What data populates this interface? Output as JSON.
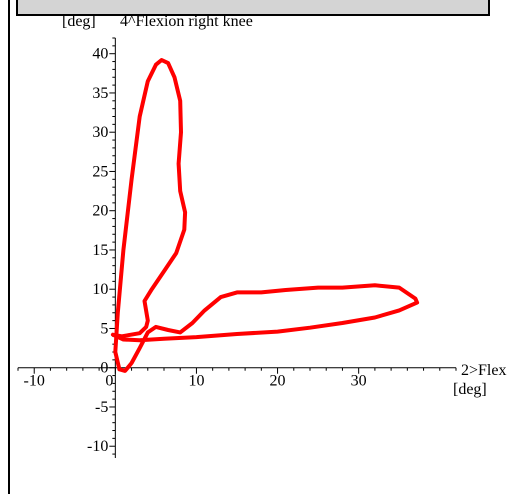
{
  "chart_data": {
    "type": "line",
    "y_axis_unit": "[deg]",
    "y_axis_label": "4^Flexion right knee",
    "x_axis_label": "2>Flex",
    "x_axis_unit": "[deg]",
    "xlim": [
      -12,
      42
    ],
    "ylim": [
      -11.5,
      42
    ],
    "x_ticks": [
      -10,
      0,
      10,
      20,
      30
    ],
    "y_ticks": [
      -10,
      -5,
      0,
      5,
      10,
      15,
      20,
      25,
      30,
      35,
      40
    ],
    "series": [
      {
        "color": "#ff0000",
        "points": [
          [
            0.5,
            -0.2
          ],
          [
            1.2,
            -0.4
          ],
          [
            2.0,
            0.6
          ],
          [
            3.0,
            2.5
          ],
          [
            4.0,
            4.5
          ],
          [
            5.0,
            5.2
          ],
          [
            6.5,
            4.8
          ],
          [
            8.0,
            4.5
          ],
          [
            9.5,
            5.7
          ],
          [
            11.0,
            7.3
          ],
          [
            13.0,
            9.0
          ],
          [
            15.0,
            9.6
          ],
          [
            18.0,
            9.6
          ],
          [
            21.0,
            9.9
          ],
          [
            25.0,
            10.2
          ],
          [
            28.0,
            10.2
          ],
          [
            32.0,
            10.5
          ],
          [
            35.0,
            10.2
          ],
          [
            37.0,
            8.8
          ],
          [
            37.2,
            8.3
          ],
          [
            35.0,
            7.3
          ],
          [
            32.0,
            6.4
          ],
          [
            28.0,
            5.7
          ],
          [
            24.0,
            5.1
          ],
          [
            20.0,
            4.6
          ],
          [
            15.0,
            4.3
          ],
          [
            10.0,
            3.9
          ],
          [
            6.0,
            3.7
          ],
          [
            3.0,
            3.5
          ],
          [
            1.0,
            3.6
          ],
          [
            -0.3,
            4.2
          ],
          [
            0.8,
            4.0
          ],
          [
            3.0,
            4.4
          ],
          [
            3.8,
            5.2
          ],
          [
            4.0,
            6.0
          ],
          [
            3.6,
            8.5
          ],
          [
            4.5,
            10.0
          ],
          [
            6.0,
            12.3
          ],
          [
            7.5,
            14.6
          ],
          [
            8.5,
            17.6
          ],
          [
            8.6,
            19.8
          ],
          [
            8.0,
            22.5
          ],
          [
            7.8,
            26.0
          ],
          [
            8.1,
            30.0
          ],
          [
            8.0,
            34.0
          ],
          [
            7.3,
            37.0
          ],
          [
            6.5,
            38.8
          ],
          [
            5.7,
            39.2
          ],
          [
            5.0,
            38.6
          ],
          [
            4.0,
            36.5
          ],
          [
            3.0,
            32.0
          ],
          [
            2.0,
            24.0
          ],
          [
            1.0,
            15.0
          ],
          [
            0.3,
            7.0
          ],
          [
            0.0,
            2.0
          ],
          [
            0.5,
            -0.2
          ]
        ]
      }
    ]
  }
}
